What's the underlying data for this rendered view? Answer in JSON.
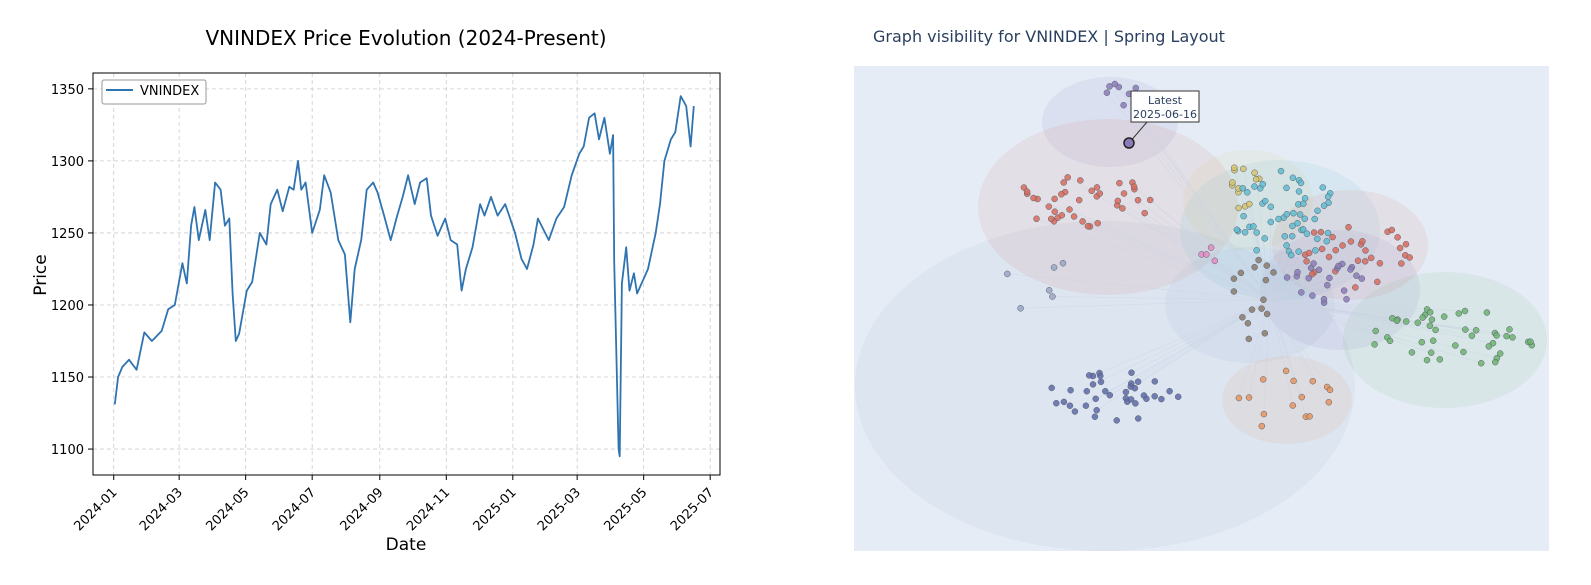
{
  "chart_data": [
    {
      "type": "line",
      "title": "VNINDEX Price Evolution (2024-Present)",
      "xlabel": "Date",
      "ylabel": "Price",
      "xlim": [
        "2023-12-13",
        "2025-07-10"
      ],
      "ylim": [
        1082,
        1361
      ],
      "x_ticks": [
        "2024-01",
        "2024-03",
        "2024-05",
        "2024-07",
        "2024-09",
        "2024-11",
        "2025-01",
        "2025-03",
        "2025-05",
        "2025-07"
      ],
      "y_ticks": [
        1100,
        1150,
        1200,
        1250,
        1300,
        1350
      ],
      "grid": true,
      "legend": "top-left",
      "series": [
        {
          "name": "VNINDEX",
          "color": "#2f73b0",
          "points": [
            [
              "2024-01-02",
              1131
            ],
            [
              "2024-01-05",
              1150
            ],
            [
              "2024-01-09",
              1157
            ],
            [
              "2024-01-15",
              1162
            ],
            [
              "2024-01-22",
              1155
            ],
            [
              "2024-01-29",
              1181
            ],
            [
              "2024-02-05",
              1175
            ],
            [
              "2024-02-14",
              1182
            ],
            [
              "2024-02-20",
              1197
            ],
            [
              "2024-02-26",
              1200
            ],
            [
              "2024-03-04",
              1229
            ],
            [
              "2024-03-08",
              1215
            ],
            [
              "2024-03-12",
              1255
            ],
            [
              "2024-03-15",
              1268
            ],
            [
              "2024-03-19",
              1245
            ],
            [
              "2024-03-25",
              1266
            ],
            [
              "2024-03-29",
              1245
            ],
            [
              "2024-04-03",
              1285
            ],
            [
              "2024-04-08",
              1280
            ],
            [
              "2024-04-12",
              1255
            ],
            [
              "2024-04-16",
              1260
            ],
            [
              "2024-04-19",
              1208
            ],
            [
              "2024-04-22",
              1175
            ],
            [
              "2024-04-25",
              1180
            ],
            [
              "2024-05-02",
              1210
            ],
            [
              "2024-05-07",
              1216
            ],
            [
              "2024-05-14",
              1250
            ],
            [
              "2024-05-20",
              1242
            ],
            [
              "2024-05-24",
              1270
            ],
            [
              "2024-05-30",
              1280
            ],
            [
              "2024-06-04",
              1265
            ],
            [
              "2024-06-10",
              1282
            ],
            [
              "2024-06-14",
              1280
            ],
            [
              "2024-06-18",
              1300
            ],
            [
              "2024-06-21",
              1280
            ],
            [
              "2024-06-25",
              1285
            ],
            [
              "2024-07-01",
              1250
            ],
            [
              "2024-07-08",
              1266
            ],
            [
              "2024-07-12",
              1290
            ],
            [
              "2024-07-18",
              1278
            ],
            [
              "2024-07-25",
              1245
            ],
            [
              "2024-07-31",
              1235
            ],
            [
              "2024-08-05",
              1188
            ],
            [
              "2024-08-09",
              1225
            ],
            [
              "2024-08-15",
              1245
            ],
            [
              "2024-08-20",
              1280
            ],
            [
              "2024-08-26",
              1285
            ],
            [
              "2024-08-30",
              1278
            ],
            [
              "2024-09-05",
              1262
            ],
            [
              "2024-09-11",
              1245
            ],
            [
              "2024-09-17",
              1262
            ],
            [
              "2024-09-22",
              1275
            ],
            [
              "2024-09-27",
              1290
            ],
            [
              "2024-10-03",
              1270
            ],
            [
              "2024-10-08",
              1285
            ],
            [
              "2024-10-14",
              1288
            ],
            [
              "2024-10-18",
              1262
            ],
            [
              "2024-10-24",
              1248
            ],
            [
              "2024-10-31",
              1260
            ],
            [
              "2024-11-05",
              1245
            ],
            [
              "2024-11-11",
              1242
            ],
            [
              "2024-11-15",
              1210
            ],
            [
              "2024-11-19",
              1225
            ],
            [
              "2024-11-25",
              1240
            ],
            [
              "2024-12-02",
              1270
            ],
            [
              "2024-12-06",
              1262
            ],
            [
              "2024-12-12",
              1275
            ],
            [
              "2024-12-18",
              1262
            ],
            [
              "2024-12-25",
              1270
            ],
            [
              "2025-01-03",
              1250
            ],
            [
              "2025-01-09",
              1232
            ],
            [
              "2025-01-14",
              1225
            ],
            [
              "2025-01-20",
              1242
            ],
            [
              "2025-01-24",
              1260
            ],
            [
              "2025-02-03",
              1245
            ],
            [
              "2025-02-10",
              1260
            ],
            [
              "2025-02-17",
              1268
            ],
            [
              "2025-02-24",
              1290
            ],
            [
              "2025-03-03",
              1305
            ],
            [
              "2025-03-07",
              1310
            ],
            [
              "2025-03-12",
              1330
            ],
            [
              "2025-03-17",
              1333
            ],
            [
              "2025-03-21",
              1315
            ],
            [
              "2025-03-26",
              1330
            ],
            [
              "2025-03-31",
              1305
            ],
            [
              "2025-04-03",
              1318
            ],
            [
              "2025-04-04",
              1230
            ],
            [
              "2025-04-08",
              1100
            ],
            [
              "2025-04-09",
              1095
            ],
            [
              "2025-04-11",
              1215
            ],
            [
              "2025-04-15",
              1240
            ],
            [
              "2025-04-18",
              1210
            ],
            [
              "2025-04-22",
              1222
            ],
            [
              "2025-04-25",
              1208
            ],
            [
              "2025-05-05",
              1225
            ],
            [
              "2025-05-12",
              1250
            ],
            [
              "2025-05-16",
              1270
            ],
            [
              "2025-05-20",
              1300
            ],
            [
              "2025-05-26",
              1315
            ],
            [
              "2025-05-30",
              1320
            ],
            [
              "2025-06-04",
              1345
            ],
            [
              "2025-06-09",
              1338
            ],
            [
              "2025-06-13",
              1310
            ],
            [
              "2025-06-16",
              1338
            ]
          ]
        }
      ]
    },
    {
      "type": "scatter",
      "title": "Graph visibility for VNINDEX | Spring Layout",
      "annotation": [
        "Latest",
        "2025-06-16"
      ],
      "grid": false,
      "legend": "none",
      "clusters": [
        {
          "color": "#d96b5c"
        },
        {
          "color": "#5fbcd0"
        },
        {
          "color": "#d6c36b"
        },
        {
          "color": "#c8a8d6"
        },
        {
          "color": "#8fa7c6"
        },
        {
          "color": "#9aa6c4"
        },
        {
          "color": "#5e6aa8"
        },
        {
          "color": "#6db36d"
        },
        {
          "color": "#8c7a6a"
        },
        {
          "color": "#e6945c"
        },
        {
          "color": "#8c7ab8"
        },
        {
          "color": "#e78ac3"
        }
      ]
    }
  ]
}
